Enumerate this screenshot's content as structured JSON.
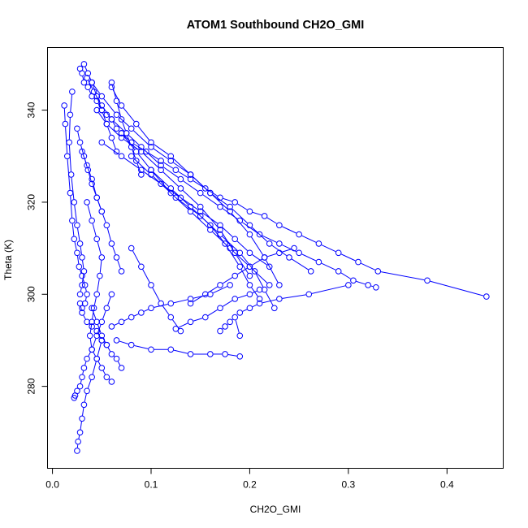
{
  "chart_data": {
    "type": "scatter",
    "title": "ATOM1 Southbound CH2O_GMI",
    "xlabel": "CH2O_GMI",
    "ylabel": "Theta (K)",
    "xlim": [
      -0.005,
      0.457
    ],
    "ylim": [
      262.2,
      353.6
    ],
    "xticks": [
      0.0,
      0.1,
      0.2,
      0.3,
      0.4
    ],
    "xtick_labels": [
      "0.0",
      "0.1",
      "0.2",
      "0.3",
      "0.4"
    ],
    "yticks": [
      280,
      300,
      320,
      340
    ],
    "ytick_labels": [
      "280",
      "300",
      "320",
      "340"
    ],
    "grid": false,
    "marker": "open-circle",
    "connected": true,
    "color": "#0000ff",
    "series": [
      {
        "x": [
          0.028,
          0.03,
          0.032,
          0.036,
          0.04,
          0.045,
          0.05,
          0.055,
          0.06,
          0.065,
          0.07,
          0.08,
          0.095,
          0.11,
          0.125,
          0.14,
          0.155,
          0.17,
          0.185,
          0.2,
          0.215,
          0.23,
          0.25,
          0.27,
          0.29,
          0.31,
          0.33,
          0.38,
          0.44
        ],
        "y": [
          349,
          348,
          346,
          345,
          343,
          342,
          340,
          339,
          338,
          336,
          335,
          333,
          331,
          329,
          327,
          325,
          323,
          321,
          320,
          318,
          317,
          315,
          313,
          311,
          309,
          307,
          305,
          303,
          299.5
        ]
      },
      {
        "x": [
          0.035,
          0.042,
          0.05,
          0.06,
          0.075,
          0.09,
          0.11,
          0.13,
          0.15,
          0.17,
          0.19,
          0.21,
          0.23,
          0.25,
          0.27,
          0.29,
          0.305,
          0.32,
          0.328
        ],
        "y": [
          347,
          344,
          341,
          338,
          335,
          332,
          328,
          325,
          322,
          319,
          316,
          313,
          311,
          309,
          307,
          305,
          303,
          302,
          301.5
        ]
      },
      {
        "x": [
          0.04,
          0.05,
          0.065,
          0.08,
          0.1,
          0.12,
          0.14,
          0.16,
          0.18,
          0.2,
          0.22,
          0.24,
          0.262
        ],
        "y": [
          346,
          343,
          339,
          336,
          332,
          329,
          326,
          322,
          319,
          315,
          311,
          308,
          305
        ]
      },
      {
        "x": [
          0.06,
          0.07,
          0.085,
          0.1,
          0.12,
          0.14,
          0.16,
          0.18,
          0.2,
          0.215,
          0.23
        ],
        "y": [
          345,
          341,
          337,
          333,
          330,
          326,
          322,
          318,
          313,
          308,
          302
        ]
      },
      {
        "x": [
          0.045,
          0.055,
          0.07,
          0.09,
          0.11,
          0.13,
          0.15,
          0.17,
          0.185,
          0.2
        ],
        "y": [
          340,
          337,
          334,
          331,
          327,
          323,
          319,
          314,
          309,
          304
        ]
      },
      {
        "x": [
          0.07,
          0.085,
          0.1,
          0.12,
          0.14,
          0.16,
          0.175,
          0.19,
          0.2,
          0.21
        ],
        "y": [
          335,
          331,
          327,
          323,
          319,
          315,
          311,
          306,
          302,
          299
        ]
      },
      {
        "x": [
          0.08,
          0.1,
          0.125,
          0.15,
          0.17,
          0.19,
          0.205,
          0.215,
          0.225
        ],
        "y": [
          330,
          326,
          321,
          317,
          313,
          309,
          305,
          301,
          297
        ]
      },
      {
        "x": [
          0.1,
          0.12,
          0.14,
          0.16,
          0.18,
          0.2,
          0.22
        ],
        "y": [
          327,
          322,
          318,
          314,
          310,
          306,
          302
        ]
      },
      {
        "x": [
          0.05,
          0.07,
          0.09,
          0.11,
          0.13,
          0.15,
          0.17,
          0.185,
          0.2,
          0.22
        ],
        "y": [
          333,
          330,
          327,
          324,
          321,
          318,
          315,
          312,
          309,
          306
        ]
      },
      {
        "x": [
          0.3,
          0.26,
          0.23,
          0.21,
          0.2,
          0.19
        ],
        "y": [
          302,
          300,
          299,
          298,
          297,
          296
        ]
      },
      {
        "x": [
          0.012,
          0.013,
          0.015,
          0.018,
          0.02,
          0.022,
          0.025,
          0.027,
          0.03,
          0.033,
          0.035,
          0.033,
          0.03,
          0.028,
          0.03,
          0.035,
          0.04,
          0.045,
          0.05,
          0.055
        ],
        "y": [
          341,
          337,
          330,
          322,
          316,
          312,
          309,
          306,
          304,
          302,
          300,
          298,
          297,
          298,
          296,
          294,
          293,
          292,
          290,
          289
        ]
      },
      {
        "x": [
          0.02,
          0.018,
          0.017,
          0.019,
          0.022,
          0.025,
          0.028,
          0.03,
          0.032,
          0.03,
          0.028
        ],
        "y": [
          344,
          339,
          333,
          326,
          320,
          315,
          311,
          308,
          305,
          302,
          300
        ]
      },
      {
        "x": [
          0.035,
          0.04,
          0.045,
          0.05,
          0.048,
          0.045,
          0.042,
          0.04,
          0.038,
          0.04,
          0.045,
          0.05,
          0.055,
          0.06
        ],
        "y": [
          320,
          316,
          312,
          308,
          304,
          300,
          297,
          294,
          291,
          288,
          286,
          284,
          282,
          281
        ]
      },
      {
        "x": [
          0.06,
          0.055,
          0.05,
          0.045,
          0.04,
          0.035,
          0.032,
          0.03,
          0.028,
          0.025,
          0.023,
          0.022
        ],
        "y": [
          300,
          297,
          294,
          291,
          288,
          286,
          284,
          282,
          280,
          279,
          278,
          277.5
        ]
      },
      {
        "x": [
          0.05,
          0.045,
          0.04,
          0.035,
          0.032,
          0.03,
          0.028,
          0.026,
          0.025
        ],
        "y": [
          290,
          286,
          282,
          279,
          276,
          273,
          270,
          268,
          266
        ]
      },
      {
        "x": [
          0.04,
          0.045,
          0.05,
          0.055,
          0.06,
          0.065,
          0.07
        ],
        "y": [
          297,
          294,
          291,
          289,
          287,
          286,
          284
        ]
      },
      {
        "x": [
          0.06,
          0.07,
          0.08,
          0.09,
          0.1,
          0.12,
          0.14,
          0.16,
          0.18
        ],
        "y": [
          293,
          294,
          295,
          296,
          297,
          298,
          299,
          300,
          302
        ]
      },
      {
        "x": [
          0.065,
          0.08,
          0.1,
          0.12,
          0.14,
          0.16,
          0.175,
          0.19
        ],
        "y": [
          290,
          289,
          288,
          288,
          287,
          287,
          287,
          286.5
        ]
      },
      {
        "x": [
          0.125,
          0.14,
          0.155,
          0.17,
          0.185,
          0.2,
          0.21
        ],
        "y": [
          292.5,
          294,
          295,
          297,
          299,
          300,
          301
        ]
      },
      {
        "x": [
          0.17,
          0.175,
          0.18,
          0.185,
          0.19
        ],
        "y": [
          292,
          293,
          294,
          295,
          291
        ]
      },
      {
        "x": [
          0.06,
          0.065,
          0.07,
          0.075,
          0.08,
          0.085,
          0.09
        ],
        "y": [
          346,
          342,
          338,
          335,
          332,
          329,
          326
        ]
      },
      {
        "x": [
          0.032,
          0.036,
          0.04,
          0.045,
          0.05,
          0.055,
          0.06,
          0.065
        ],
        "y": [
          350,
          348,
          346,
          343,
          340,
          337,
          334,
          331
        ]
      },
      {
        "x": [
          0.025,
          0.028,
          0.032,
          0.036,
          0.04,
          0.045,
          0.05
        ],
        "y": [
          336,
          333,
          330,
          327,
          324,
          321,
          318
        ]
      },
      {
        "x": [
          0.03,
          0.035,
          0.04,
          0.045,
          0.05,
          0.055,
          0.06,
          0.065,
          0.07
        ],
        "y": [
          331,
          328,
          325,
          321,
          318,
          315,
          311,
          308,
          305
        ]
      },
      {
        "x": [
          0.14,
          0.155,
          0.17,
          0.185,
          0.2,
          0.215,
          0.23,
          0.245
        ],
        "y": [
          298,
          300,
          302,
          304,
          306,
          308,
          309,
          310
        ]
      },
      {
        "x": [
          0.08,
          0.09,
          0.1,
          0.11,
          0.12,
          0.13
        ],
        "y": [
          310,
          306,
          302,
          298,
          295,
          292
        ]
      }
    ]
  }
}
